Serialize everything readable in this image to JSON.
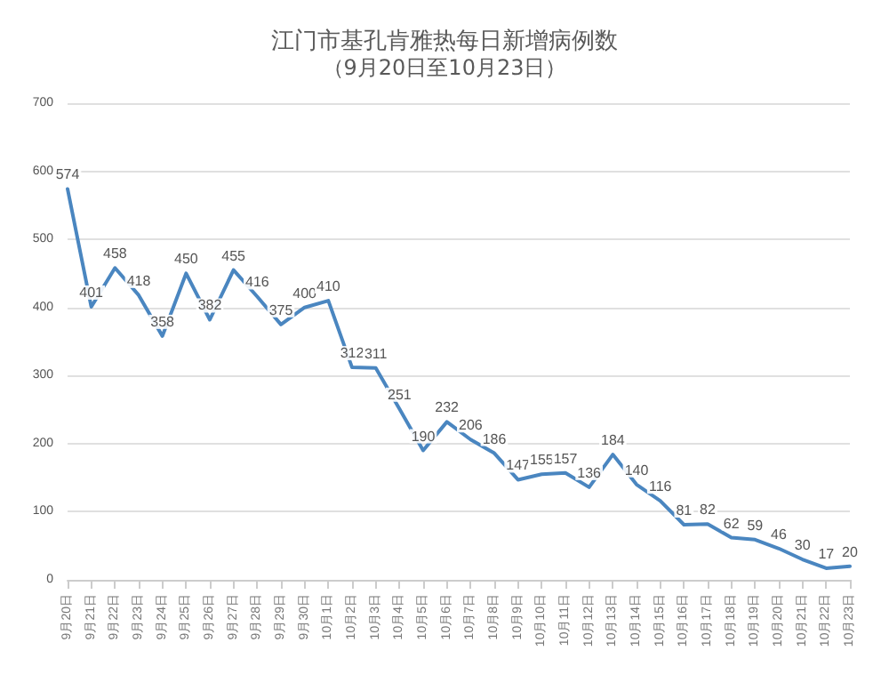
{
  "chart_data": {
    "type": "line",
    "title": "江门市基孔肯雅热每日新增病例数",
    "subtitle": "（9月20日至10月23日）",
    "categories": [
      "9月20日",
      "9月21日",
      "9月22日",
      "9月23日",
      "9月24日",
      "9月25日",
      "9月26日",
      "9月27日",
      "9月28日",
      "9月29日",
      "9月30日",
      "10月1日",
      "10月2日",
      "10月3日",
      "10月4日",
      "10月5日",
      "10月6日",
      "10月7日",
      "10月8日",
      "10月9日",
      "10月10日",
      "10月11日",
      "10月12日",
      "10月13日",
      "10月14日",
      "10月15日",
      "10月16日",
      "10月17日",
      "10月18日",
      "10月19日",
      "10月20日",
      "10月21日",
      "10月22日",
      "10月23日"
    ],
    "values": [
      574,
      401,
      458,
      418,
      358,
      450,
      382,
      455,
      416,
      375,
      400,
      410,
      312,
      311,
      251,
      190,
      232,
      206,
      186,
      147,
      155,
      157,
      136,
      184,
      140,
      116,
      81,
      82,
      62,
      59,
      46,
      30,
      17,
      20
    ],
    "color": "#4a86c0",
    "ylim": [
      0,
      700
    ],
    "yticks": [
      0,
      100,
      200,
      300,
      400,
      500,
      600,
      700
    ],
    "grid": "y",
    "marker": "none",
    "line_style": "solid",
    "data_labels": true
  }
}
